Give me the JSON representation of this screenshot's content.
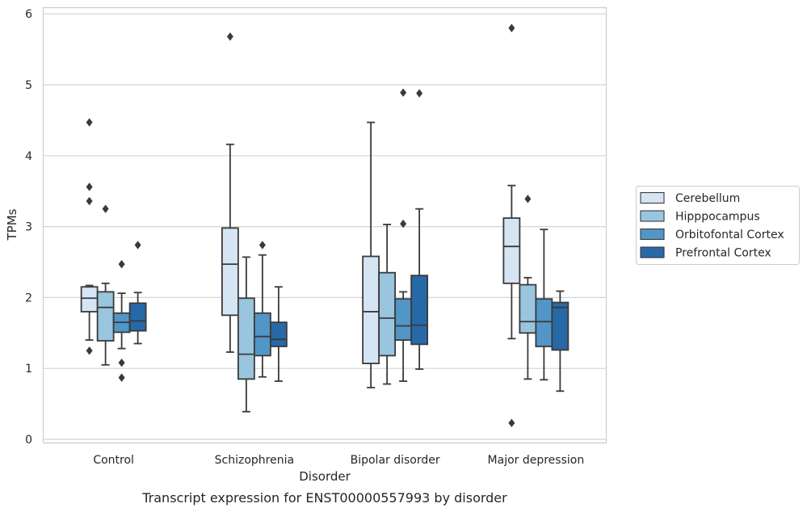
{
  "chart_data": {
    "type": "box",
    "title": "",
    "caption": "Transcript expression for ENST00000557993 by disorder",
    "xlabel": "Disorder",
    "ylabel": "TPMs",
    "ylim": [
      -0.05,
      6.1
    ],
    "yticks": [
      "0",
      "1",
      "2",
      "3",
      "4",
      "5",
      "6"
    ],
    "grid": "horizontal",
    "legend_position": "right",
    "categories": [
      "Control",
      "Schizophrenia",
      "Bipolar disorder",
      "Major depression"
    ],
    "series": [
      {
        "name": "Cerebellum",
        "color": "#d6e5f4",
        "boxes": [
          {
            "whisker_low": 1.4,
            "q1": 1.8,
            "median": 1.99,
            "q3": 2.15,
            "whisker_high": 2.17,
            "outliers": [
              1.25,
              3.36,
              3.56,
              4.47
            ]
          },
          {
            "whisker_low": 1.23,
            "q1": 1.75,
            "median": 2.47,
            "q3": 2.98,
            "whisker_high": 4.16,
            "outliers": [
              5.68
            ]
          },
          {
            "whisker_low": 0.73,
            "q1": 1.07,
            "median": 1.8,
            "q3": 2.58,
            "whisker_high": 4.47,
            "outliers": []
          },
          {
            "whisker_low": 1.42,
            "q1": 2.2,
            "median": 2.72,
            "q3": 3.12,
            "whisker_high": 3.58,
            "outliers": [
              0.23,
              5.8
            ]
          }
        ]
      },
      {
        "name": "Hipppocampus",
        "color": "#9ac5df",
        "boxes": [
          {
            "whisker_low": 1.05,
            "q1": 1.39,
            "median": 1.86,
            "q3": 2.08,
            "whisker_high": 2.2,
            "outliers": [
              3.25
            ]
          },
          {
            "whisker_low": 0.39,
            "q1": 0.85,
            "median": 1.2,
            "q3": 1.99,
            "whisker_high": 2.57,
            "outliers": []
          },
          {
            "whisker_low": 0.78,
            "q1": 1.18,
            "median": 1.71,
            "q3": 2.35,
            "whisker_high": 3.03,
            "outliers": []
          },
          {
            "whisker_low": 0.85,
            "q1": 1.5,
            "median": 1.66,
            "q3": 2.18,
            "whisker_high": 2.28,
            "outliers": [
              3.39
            ]
          }
        ]
      },
      {
        "name": "Orbitofontal Cortex",
        "color": "#5196c6",
        "boxes": [
          {
            "whisker_low": 1.28,
            "q1": 1.51,
            "median": 1.65,
            "q3": 1.78,
            "whisker_high": 2.06,
            "outliers": [
              0.87,
              1.08,
              2.47
            ]
          },
          {
            "whisker_low": 0.88,
            "q1": 1.18,
            "median": 1.45,
            "q3": 1.78,
            "whisker_high": 2.6,
            "outliers": [
              2.74
            ]
          },
          {
            "whisker_low": 0.82,
            "q1": 1.4,
            "median": 1.6,
            "q3": 1.98,
            "whisker_high": 2.08,
            "outliers": [
              3.04,
              4.89
            ]
          },
          {
            "whisker_low": 0.84,
            "q1": 1.31,
            "median": 1.66,
            "q3": 1.98,
            "whisker_high": 2.96,
            "outliers": []
          }
        ]
      },
      {
        "name": "Prefrontal Cortex",
        "color": "#2769a7",
        "boxes": [
          {
            "whisker_low": 1.35,
            "q1": 1.53,
            "median": 1.67,
            "q3": 1.92,
            "whisker_high": 2.07,
            "outliers": [
              2.74
            ]
          },
          {
            "whisker_low": 0.82,
            "q1": 1.31,
            "median": 1.41,
            "q3": 1.65,
            "whisker_high": 2.15,
            "outliers": []
          },
          {
            "whisker_low": 0.99,
            "q1": 1.34,
            "median": 1.61,
            "q3": 2.31,
            "whisker_high": 3.25,
            "outliers": [
              4.88
            ]
          },
          {
            "whisker_low": 0.68,
            "q1": 1.26,
            "median": 1.86,
            "q3": 1.93,
            "whisker_high": 2.09,
            "outliers": []
          }
        ]
      }
    ]
  }
}
